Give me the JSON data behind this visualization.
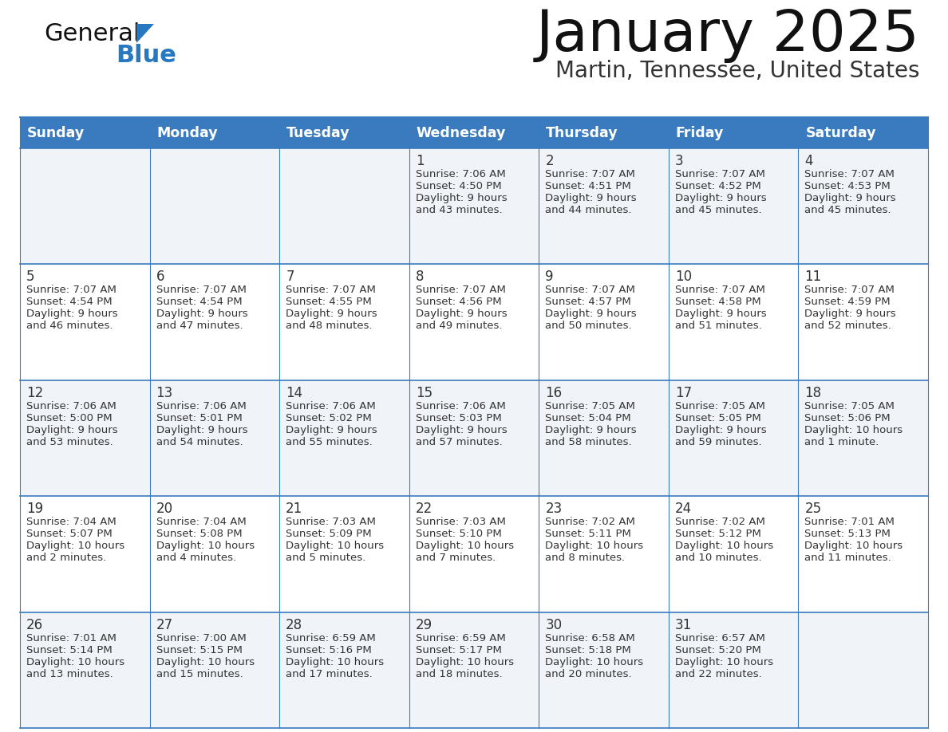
{
  "title": "January 2025",
  "subtitle": "Martin, Tennessee, United States",
  "days_of_week": [
    "Sunday",
    "Monday",
    "Tuesday",
    "Wednesday",
    "Thursday",
    "Friday",
    "Saturday"
  ],
  "header_bg": "#3a7abf",
  "header_text_color": "#FFFFFF",
  "row_bg_odd": "#f0f4f8",
  "row_bg_even": "#FFFFFF",
  "cell_text_color": "#333333",
  "border_color": "#3a7abf",
  "title_color": "#111111",
  "subtitle_color": "#333333",
  "line_color": "#3a7abf",
  "calendar_data": [
    [
      null,
      null,
      null,
      {
        "day": 1,
        "sunrise": "7:06 AM",
        "sunset": "4:50 PM",
        "daylight": "9 hours and 43 minutes."
      },
      {
        "day": 2,
        "sunrise": "7:07 AM",
        "sunset": "4:51 PM",
        "daylight": "9 hours and 44 minutes."
      },
      {
        "day": 3,
        "sunrise": "7:07 AM",
        "sunset": "4:52 PM",
        "daylight": "9 hours and 45 minutes."
      },
      {
        "day": 4,
        "sunrise": "7:07 AM",
        "sunset": "4:53 PM",
        "daylight": "9 hours and 45 minutes."
      }
    ],
    [
      {
        "day": 5,
        "sunrise": "7:07 AM",
        "sunset": "4:54 PM",
        "daylight": "9 hours and 46 minutes."
      },
      {
        "day": 6,
        "sunrise": "7:07 AM",
        "sunset": "4:54 PM",
        "daylight": "9 hours and 47 minutes."
      },
      {
        "day": 7,
        "sunrise": "7:07 AM",
        "sunset": "4:55 PM",
        "daylight": "9 hours and 48 minutes."
      },
      {
        "day": 8,
        "sunrise": "7:07 AM",
        "sunset": "4:56 PM",
        "daylight": "9 hours and 49 minutes."
      },
      {
        "day": 9,
        "sunrise": "7:07 AM",
        "sunset": "4:57 PM",
        "daylight": "9 hours and 50 minutes."
      },
      {
        "day": 10,
        "sunrise": "7:07 AM",
        "sunset": "4:58 PM",
        "daylight": "9 hours and 51 minutes."
      },
      {
        "day": 11,
        "sunrise": "7:07 AM",
        "sunset": "4:59 PM",
        "daylight": "9 hours and 52 minutes."
      }
    ],
    [
      {
        "day": 12,
        "sunrise": "7:06 AM",
        "sunset": "5:00 PM",
        "daylight": "9 hours and 53 minutes."
      },
      {
        "day": 13,
        "sunrise": "7:06 AM",
        "sunset": "5:01 PM",
        "daylight": "9 hours and 54 minutes."
      },
      {
        "day": 14,
        "sunrise": "7:06 AM",
        "sunset": "5:02 PM",
        "daylight": "9 hours and 55 minutes."
      },
      {
        "day": 15,
        "sunrise": "7:06 AM",
        "sunset": "5:03 PM",
        "daylight": "9 hours and 57 minutes."
      },
      {
        "day": 16,
        "sunrise": "7:05 AM",
        "sunset": "5:04 PM",
        "daylight": "9 hours and 58 minutes."
      },
      {
        "day": 17,
        "sunrise": "7:05 AM",
        "sunset": "5:05 PM",
        "daylight": "9 hours and 59 minutes."
      },
      {
        "day": 18,
        "sunrise": "7:05 AM",
        "sunset": "5:06 PM",
        "daylight": "10 hours and 1 minute."
      }
    ],
    [
      {
        "day": 19,
        "sunrise": "7:04 AM",
        "sunset": "5:07 PM",
        "daylight": "10 hours and 2 minutes."
      },
      {
        "day": 20,
        "sunrise": "7:04 AM",
        "sunset": "5:08 PM",
        "daylight": "10 hours and 4 minutes."
      },
      {
        "day": 21,
        "sunrise": "7:03 AM",
        "sunset": "5:09 PM",
        "daylight": "10 hours and 5 minutes."
      },
      {
        "day": 22,
        "sunrise": "7:03 AM",
        "sunset": "5:10 PM",
        "daylight": "10 hours and 7 minutes."
      },
      {
        "day": 23,
        "sunrise": "7:02 AM",
        "sunset": "5:11 PM",
        "daylight": "10 hours and 8 minutes."
      },
      {
        "day": 24,
        "sunrise": "7:02 AM",
        "sunset": "5:12 PM",
        "daylight": "10 hours and 10 minutes."
      },
      {
        "day": 25,
        "sunrise": "7:01 AM",
        "sunset": "5:13 PM",
        "daylight": "10 hours and 11 minutes."
      }
    ],
    [
      {
        "day": 26,
        "sunrise": "7:01 AM",
        "sunset": "5:14 PM",
        "daylight": "10 hours and 13 minutes."
      },
      {
        "day": 27,
        "sunrise": "7:00 AM",
        "sunset": "5:15 PM",
        "daylight": "10 hours and 15 minutes."
      },
      {
        "day": 28,
        "sunrise": "6:59 AM",
        "sunset": "5:16 PM",
        "daylight": "10 hours and 17 minutes."
      },
      {
        "day": 29,
        "sunrise": "6:59 AM",
        "sunset": "5:17 PM",
        "daylight": "10 hours and 18 minutes."
      },
      {
        "day": 30,
        "sunrise": "6:58 AM",
        "sunset": "5:18 PM",
        "daylight": "10 hours and 20 minutes."
      },
      {
        "day": 31,
        "sunrise": "6:57 AM",
        "sunset": "5:20 PM",
        "daylight": "10 hours and 22 minutes."
      },
      null
    ]
  ],
  "logo_text_general": "General",
  "logo_text_blue": "Blue",
  "generalblue_color": "#111111",
  "blue_color": "#2878C0",
  "figwidth": 11.88,
  "figheight": 9.18,
  "dpi": 100
}
